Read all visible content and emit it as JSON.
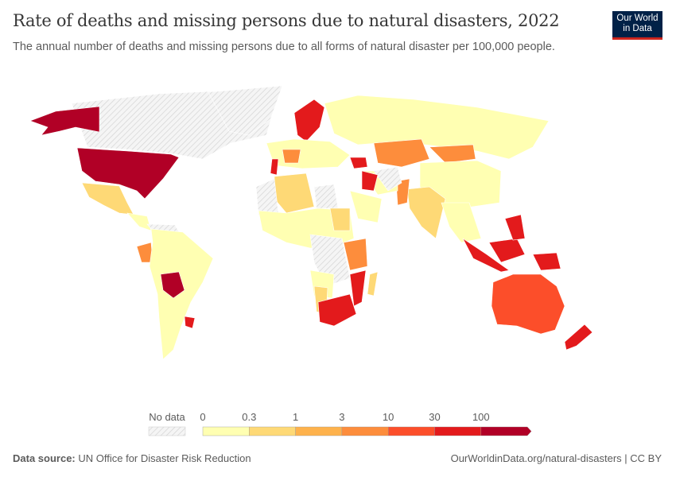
{
  "header": {
    "title": "Rate of deaths and missing persons due to natural disasters, 2022",
    "subtitle": "The annual number of deaths and missing persons due to all forms of natural disaster per 100,000 people.",
    "logo_text": "Our World in Data"
  },
  "chart_data": {
    "type": "choropleth-map",
    "year": "2022",
    "legend": {
      "no_data_label": "No data",
      "bins": [
        "0",
        "0.3",
        "1",
        "3",
        "10",
        "30",
        "100"
      ],
      "colors": [
        "#ffffb2",
        "#fed976",
        "#feb24c",
        "#fd8d3c",
        "#fc4e2a",
        "#e31a1c",
        "#b10026"
      ],
      "no_data_color": "#e8e8e8",
      "open_ended_top": true
    }
  },
  "footer": {
    "source_label": "Data source:",
    "source": "UN Office for Disaster Risk Reduction",
    "url": "OurWorldinData.org/natural-disasters | CC BY"
  }
}
